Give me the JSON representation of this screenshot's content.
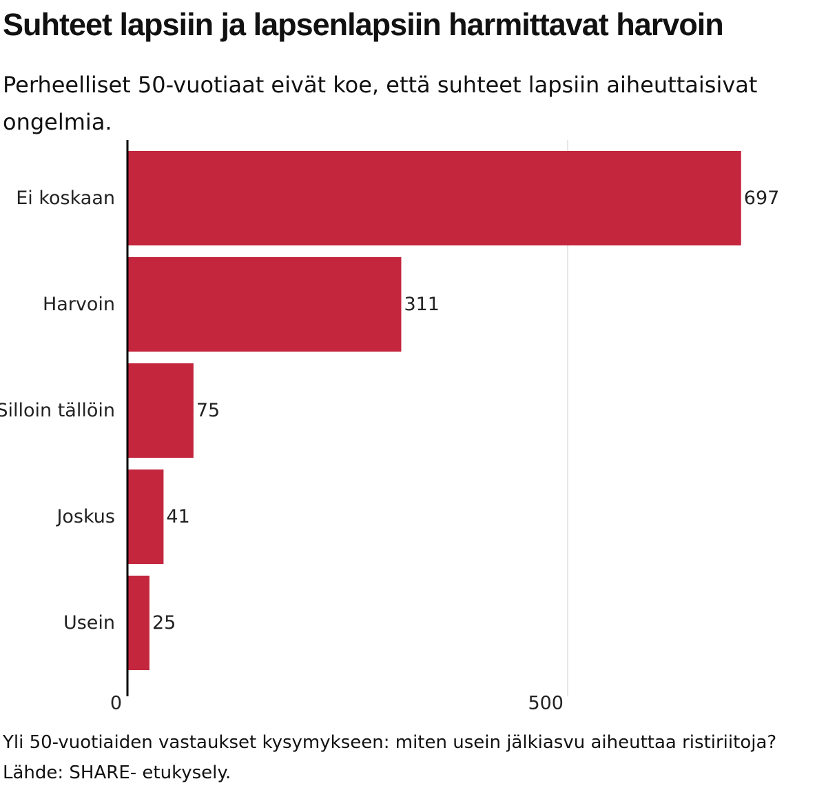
{
  "title": "Suhteet lapsiin ja lapsenlapsiin harmittavat harvoin",
  "subtitle": "Perheelliset 50-vuotiaat eivät koe, että suhteet lapsiin aiheuttaisivat ongelmia.",
  "footer": {
    "note": "Yli 50-vuotiaiden vastaukset kysymykseen: miten usein jälkiasvu aiheuttaa ristiriitoja?",
    "source": "Lähde: SHARE- etukysely."
  },
  "colors": {
    "bar": "#c4263e",
    "axis": "#000000",
    "grid": "#dddddd"
  },
  "chart_data": {
    "type": "bar",
    "orientation": "horizontal",
    "categories": [
      "Ei koskaan",
      "Harvoin",
      "Silloin tällöin",
      "Joskus",
      "Usein"
    ],
    "values": [
      697,
      311,
      75,
      41,
      25
    ],
    "xlim": [
      0,
      700
    ],
    "xticks": [
      0,
      500
    ],
    "data_labels": true,
    "grid": true
  }
}
